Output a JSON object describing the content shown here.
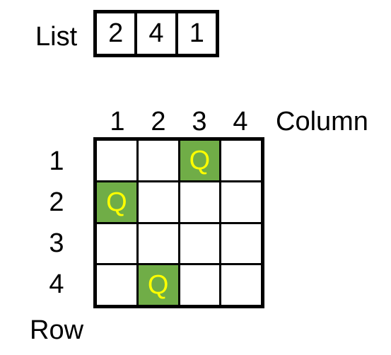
{
  "list": {
    "label": "List",
    "values": [
      "2",
      "4",
      "1"
    ]
  },
  "board": {
    "column_label": "Column",
    "row_label": "Row",
    "columns": [
      "1",
      "2",
      "3",
      "4"
    ],
    "rows": [
      "1",
      "2",
      "3",
      "4"
    ],
    "queen_symbol": "Q",
    "queen_fill": "#70ad47",
    "queen_text_color": "#ffff00",
    "queens": [
      {
        "row": 1,
        "col": 3
      },
      {
        "row": 2,
        "col": 1
      },
      {
        "row": 4,
        "col": 2
      }
    ]
  }
}
